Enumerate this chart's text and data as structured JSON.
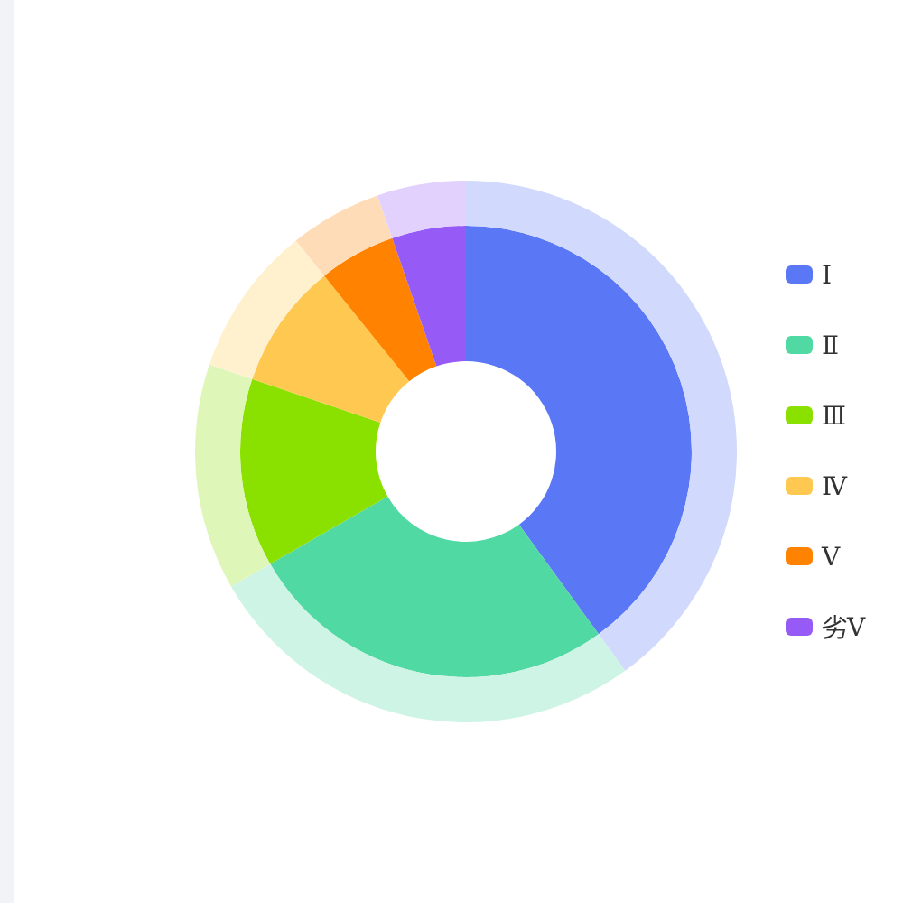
{
  "chart_data": {
    "type": "donut",
    "categories": [
      "Ⅰ",
      "Ⅱ",
      "Ⅲ",
      "Ⅳ",
      "Ⅴ",
      "劣Ⅴ"
    ],
    "series": [
      {
        "values": [
          40,
          26.7,
          13.5,
          9,
          5.5,
          5.3
        ],
        "colors": [
          "#5a78f6",
          "#50d9a3",
          "#8ae100",
          "#ffc850",
          "#ff8200",
          "#965af6"
        ]
      },
      {
        "values": [
          40,
          26.7,
          13.5,
          9,
          5.5,
          5.3
        ],
        "colors": [
          "#d1d9fc",
          "#cef4e5",
          "#def7b8",
          "#fff0ce",
          "#ffdcb8",
          "#e2d1fc"
        ]
      }
    ],
    "legend": "right"
  }
}
